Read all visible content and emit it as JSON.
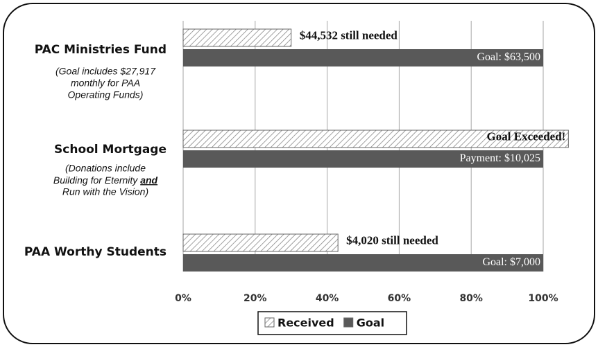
{
  "chart_data": {
    "type": "bar",
    "orientation": "horizontal",
    "categories": [
      "PAC Ministries Fund",
      "School Mortgage",
      "PAA Worthy Students"
    ],
    "category_notes": [
      [
        "(Goal includes $27,917",
        "monthly for PAA",
        "Operating Funds)"
      ],
      [
        "(Donations include",
        [
          "Building for Eternity ",
          "and"
        ],
        "Run with the Vision)"
      ],
      null
    ],
    "series": [
      {
        "name": "Received",
        "color": "#808080",
        "pattern": "hatch",
        "values": [
          30,
          107,
          43
        ],
        "annotations": [
          "$44,532 still needed",
          "Goal Exceeded!",
          "$4,020 still needed"
        ]
      },
      {
        "name": "Goal",
        "color": "#595959",
        "values": [
          100,
          100,
          100
        ],
        "annotations": [
          "Goal:  $63,500",
          "Payment:  $10,025",
          "Goal:  $7,000"
        ]
      }
    ],
    "xlim": [
      0,
      100
    ],
    "xticks": [
      {
        "value": 0,
        "label": "0%"
      },
      {
        "value": 20,
        "label": "20%"
      },
      {
        "value": 40,
        "label": "40%"
      },
      {
        "value": 60,
        "label": "60%"
      },
      {
        "value": 80,
        "label": "80%"
      },
      {
        "value": 100,
        "label": "100%"
      }
    ],
    "grid": true,
    "legend": "bottom"
  }
}
